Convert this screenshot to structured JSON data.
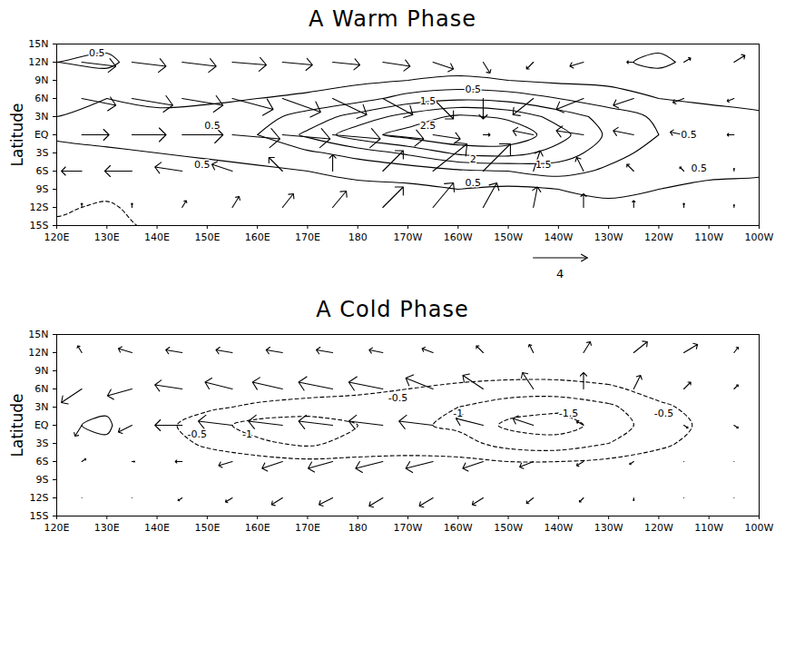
{
  "chart_data": [
    {
      "type": "vector_contour",
      "title": "A Warm Phase",
      "ylabel": "Latitude",
      "xlim": [
        120,
        260
      ],
      "ylim": [
        -15,
        15
      ],
      "xticks": [
        {
          "value": 120,
          "label": "120E"
        },
        {
          "value": 130,
          "label": "130E"
        },
        {
          "value": 140,
          "label": "140E"
        },
        {
          "value": 150,
          "label": "150E"
        },
        {
          "value": 160,
          "label": "160E"
        },
        {
          "value": 170,
          "label": "170E"
        },
        180,
        {
          "value": 190,
          "label": "170W"
        },
        {
          "value": 200,
          "label": "160W"
        },
        {
          "value": 210,
          "label": "150W"
        },
        {
          "value": 220,
          "label": "140W"
        },
        {
          "value": 230,
          "label": "130W"
        },
        {
          "value": 240,
          "label": "120W"
        },
        {
          "value": 250,
          "label": "110W"
        },
        {
          "value": 260,
          "label": "100W"
        }
      ],
      "yticks": [
        {
          "value": -15,
          "label": "15S"
        },
        {
          "value": -12,
          "label": "12S"
        },
        {
          "value": -9,
          "label": "9S"
        },
        {
          "value": -6,
          "label": "6S"
        },
        {
          "value": -3,
          "label": "3S"
        },
        {
          "value": 0,
          "label": "EQ"
        },
        {
          "value": 3,
          "label": "3N"
        },
        {
          "value": 6,
          "label": "6N"
        },
        {
          "value": 9,
          "label": "9N"
        },
        {
          "value": 12,
          "label": "12N"
        },
        {
          "value": 15,
          "label": "15N"
        }
      ],
      "field": {
        "lon": [
          120,
          130,
          140,
          150,
          160,
          170,
          180,
          190,
          200,
          210,
          220,
          230,
          240,
          250,
          260
        ],
        "lat": [
          -15,
          -12,
          -9,
          -6,
          -3,
          0,
          3,
          6,
          9,
          12,
          15
        ],
        "values": [
          [
            -0.6,
            -0.8,
            -0.3,
            0.0,
            0.0,
            0.1,
            0.2,
            0.2,
            0.3,
            0.3,
            0.3,
            0.3,
            0.3,
            0.3,
            0.3
          ],
          [
            -0.4,
            -0.6,
            -0.2,
            0.0,
            0.1,
            0.2,
            0.2,
            0.3,
            0.4,
            0.4,
            0.4,
            0.4,
            0.4,
            0.4,
            0.4
          ],
          [
            -0.1,
            -0.3,
            0.0,
            0.1,
            0.2,
            0.3,
            0.4,
            0.4,
            0.5,
            0.4,
            0.5,
            0.6,
            0.5,
            0.4,
            0.3
          ],
          [
            0.0,
            -0.2,
            0.2,
            0.3,
            0.4,
            0.5,
            0.6,
            0.7,
            0.9,
            1.0,
            1.2,
            0.9,
            0.7,
            0.6,
            0.6
          ],
          [
            0.3,
            0.4,
            0.5,
            0.6,
            0.7,
            0.9,
            1.2,
            1.6,
            2.1,
            2.2,
            1.8,
            1.2,
            0.8,
            0.7,
            0.6
          ],
          [
            0.6,
            0.7,
            0.7,
            0.8,
            1.0,
            1.6,
            2.3,
            2.7,
            3.0,
            2.9,
            2.2,
            1.4,
            1.0,
            0.8,
            0.6
          ],
          [
            0.5,
            0.6,
            0.6,
            0.7,
            0.8,
            1.2,
            1.7,
            2.2,
            2.6,
            2.4,
            1.8,
            1.3,
            0.9,
            0.7,
            0.6
          ],
          [
            0.4,
            0.5,
            0.4,
            0.4,
            0.5,
            0.6,
            0.8,
            1.2,
            1.4,
            1.3,
            1.0,
            0.7,
            0.5,
            0.4,
            0.3
          ],
          [
            0.3,
            0.3,
            0.2,
            0.2,
            0.3,
            0.3,
            0.4,
            0.5,
            0.6,
            0.5,
            0.4,
            0.4,
            0.3,
            0.3,
            0.3
          ],
          [
            0.5,
            0.6,
            0.2,
            0.1,
            0.1,
            0.2,
            0.2,
            0.2,
            0.2,
            0.2,
            0.2,
            0.4,
            0.6,
            0.3,
            0.2
          ],
          [
            0.3,
            0.4,
            0.1,
            0.0,
            0.0,
            0.1,
            0.1,
            0.1,
            0.1,
            0.1,
            0.1,
            0.3,
            0.4,
            0.2,
            0.1
          ]
        ]
      },
      "contour_levels": [
        -1,
        -0.5,
        0.5,
        1,
        1.5,
        2,
        2.5
      ],
      "contour_labels": [
        {
          "text": "0.5",
          "lon": 128,
          "lat": 13.5
        },
        {
          "text": "1.5",
          "lon": 194,
          "lat": 5.5
        },
        {
          "text": "0.5",
          "lon": 203,
          "lat": 7.5
        },
        {
          "text": "0.5",
          "lon": 151,
          "lat": 1.5
        },
        {
          "text": "2.5",
          "lon": 194,
          "lat": 1.5
        },
        {
          "text": "2",
          "lon": 203,
          "lat": -4
        },
        {
          "text": "1.5",
          "lon": 217,
          "lat": -5
        },
        {
          "text": "0.5",
          "lon": 203,
          "lat": -8
        },
        {
          "text": "0.5",
          "lon": 149,
          "lat": -5
        },
        {
          "text": "0.5",
          "lon": 246,
          "lat": 0
        },
        {
          "text": "0.5",
          "lon": 248,
          "lat": -5.5
        }
      ],
      "vectors": {
        "lon": [
          125,
          135,
          145,
          155,
          165,
          175,
          185,
          195,
          205,
          215,
          225,
          235,
          245,
          255
        ],
        "lat": [
          12,
          6,
          0,
          -6,
          -12
        ],
        "u": [
          [
            2.5,
            2.5,
            2.5,
            2.5,
            2.2,
            2,
            2,
            1.5,
            0.5,
            -0.5,
            -1,
            -0.5,
            0.5,
            0.8
          ],
          [
            2.5,
            3,
            3,
            3,
            2.8,
            2.5,
            2.2,
            1.5,
            0,
            -1.5,
            -2,
            -1.5,
            -0.8,
            -0.5
          ],
          [
            2,
            2.5,
            3,
            3.5,
            3.5,
            3.5,
            3,
            2,
            0.5,
            -1.5,
            -2,
            -1.5,
            -1,
            -0.5
          ],
          [
            -1.5,
            -2,
            -2,
            -1.5,
            -1,
            0,
            1.5,
            2.5,
            2,
            0.5,
            -0.5,
            -0.5,
            -0.3,
            0
          ],
          [
            0,
            0,
            0.3,
            0.5,
            0.8,
            1,
            1.5,
            1.5,
            1,
            0.3,
            0,
            0,
            0,
            0
          ]
        ],
        "v": [
          [
            -0.3,
            -0.3,
            -0.3,
            -0.2,
            -0.2,
            -0.2,
            -0.3,
            -0.5,
            -0.8,
            -0.5,
            -0.3,
            0,
            0.3,
            0.5
          ],
          [
            -0.5,
            -0.5,
            -0.5,
            -0.8,
            -1,
            -1.2,
            -1.2,
            -1.5,
            -1.5,
            -1.2,
            -0.8,
            -0.5,
            -0.3,
            -0.2
          ],
          [
            0,
            0,
            0,
            -0.3,
            -0.3,
            -0.3,
            -0.3,
            -0.3,
            0,
            0.3,
            0.3,
            0.3,
            0.2,
            0
          ],
          [
            0,
            0,
            0.3,
            0.5,
            1,
            1.2,
            1.5,
            2,
            2,
            1.5,
            1,
            0.5,
            0.3,
            0.2
          ],
          [
            0.3,
            0.3,
            0.5,
            0.8,
            1,
            1.2,
            1.5,
            1.8,
            1.8,
            1.5,
            1,
            0.5,
            0.3,
            0.2
          ]
        ]
      },
      "reference_vector": 4
    },
    {
      "type": "vector_contour",
      "title": "A Cold Phase",
      "ylabel": "Latitude",
      "xlim": [
        120,
        260
      ],
      "ylim": [
        -15,
        15
      ],
      "xticks": [
        {
          "value": 120,
          "label": "120E"
        },
        {
          "value": 130,
          "label": "130E"
        },
        {
          "value": 140,
          "label": "140E"
        },
        {
          "value": 150,
          "label": "150E"
        },
        {
          "value": 160,
          "label": "160E"
        },
        {
          "value": 170,
          "label": "170E"
        },
        180,
        {
          "value": 190,
          "label": "170W"
        },
        {
          "value": 200,
          "label": "160W"
        },
        {
          "value": 210,
          "label": "150W"
        },
        {
          "value": 220,
          "label": "140W"
        },
        {
          "value": 230,
          "label": "130W"
        },
        {
          "value": 240,
          "label": "120W"
        },
        {
          "value": 250,
          "label": "110W"
        },
        {
          "value": 260,
          "label": "100W"
        }
      ],
      "yticks": [
        {
          "value": -15,
          "label": "15S"
        },
        {
          "value": -12,
          "label": "12S"
        },
        {
          "value": -9,
          "label": "9S"
        },
        {
          "value": -6,
          "label": "6S"
        },
        {
          "value": -3,
          "label": "3S"
        },
        {
          "value": 0,
          "label": "EQ"
        },
        {
          "value": 3,
          "label": "3N"
        },
        {
          "value": 6,
          "label": "6N"
        },
        {
          "value": 9,
          "label": "9N"
        },
        {
          "value": 12,
          "label": "12N"
        },
        {
          "value": 15,
          "label": "15N"
        }
      ],
      "field": {
        "lon": [
          120,
          130,
          140,
          150,
          160,
          170,
          180,
          190,
          200,
          210,
          220,
          230,
          240,
          250,
          260
        ],
        "lat": [
          -15,
          -12,
          -9,
          -6,
          -3,
          0,
          3,
          6,
          9,
          12,
          15
        ],
        "values": [
          [
            0.3,
            0.2,
            0.1,
            0,
            0,
            0,
            0,
            0,
            0,
            0,
            0,
            0,
            0,
            0,
            0
          ],
          [
            0.2,
            0.1,
            0,
            0,
            0,
            0,
            -0.1,
            -0.1,
            -0.1,
            -0.1,
            -0.1,
            -0.1,
            -0.1,
            0,
            0
          ],
          [
            0.1,
            0.1,
            0,
            -0.1,
            -0.2,
            -0.2,
            -0.3,
            -0.3,
            -0.3,
            -0.3,
            -0.3,
            -0.3,
            -0.2,
            -0.1,
            0
          ],
          [
            0.2,
            0.1,
            0,
            -0.2,
            -0.3,
            -0.4,
            -0.4,
            -0.4,
            -0.4,
            -0.5,
            -0.5,
            -0.4,
            -0.3,
            -0.2,
            -0.1
          ],
          [
            0.3,
            0.4,
            -0.2,
            -0.6,
            -0.9,
            -1.1,
            -0.8,
            -0.7,
            -0.8,
            -1.2,
            -1.3,
            -1.0,
            -0.6,
            -0.3,
            -0.2
          ],
          [
            0.4,
            0.6,
            -0.3,
            -0.8,
            -1.2,
            -1.3,
            -1.0,
            -0.9,
            -1.1,
            -1.6,
            -1.7,
            -1.3,
            -0.7,
            -0.4,
            -0.2
          ],
          [
            0.3,
            0.4,
            -0.1,
            -0.4,
            -0.6,
            -0.7,
            -0.7,
            -0.8,
            -1.0,
            -1.3,
            -1.4,
            -1.1,
            -0.6,
            -0.3,
            -0.1
          ],
          [
            0.3,
            0.2,
            0,
            -0.1,
            -0.2,
            -0.3,
            -0.4,
            -0.5,
            -0.6,
            -0.7,
            -0.7,
            -0.6,
            -0.3,
            -0.1,
            0
          ],
          [
            0.1,
            0.1,
            0,
            0,
            -0.1,
            -0.1,
            -0.2,
            -0.2,
            -0.3,
            -0.3,
            -0.3,
            -0.2,
            -0.1,
            0,
            0
          ],
          [
            0,
            0,
            0,
            0,
            0,
            0,
            0,
            0,
            -0.1,
            -0.1,
            -0.1,
            -0.1,
            0,
            0,
            0
          ],
          [
            0,
            0,
            0,
            0,
            0,
            0,
            0,
            0,
            0,
            0,
            0,
            0,
            0,
            0,
            0
          ]
        ]
      },
      "contour_levels": [
        -1.5,
        -1,
        -0.5,
        0.5
      ],
      "contour_labels": [
        {
          "text": "-0.5",
          "lon": 188,
          "lat": 4.5
        },
        {
          "text": "-1",
          "lon": 200,
          "lat": 2
        },
        {
          "text": "-1.5",
          "lon": 222,
          "lat": 2
        },
        {
          "text": "-0.5",
          "lon": 241,
          "lat": 2
        },
        {
          "text": "-0.5",
          "lon": 148,
          "lat": -1.5
        },
        {
          "text": "-1",
          "lon": 158,
          "lat": -1.5
        }
      ],
      "vectors": {
        "lon": [
          125,
          135,
          145,
          155,
          165,
          175,
          185,
          195,
          205,
          215,
          225,
          235,
          245,
          255
        ],
        "lat": [
          12,
          6,
          0,
          -6,
          -12
        ],
        "u": [
          [
            -0.3,
            -1,
            -1.2,
            -1.2,
            -1.2,
            -1.2,
            -1,
            -0.8,
            -0.5,
            -0.3,
            0.5,
            1,
            1,
            0.3
          ],
          [
            -1.5,
            -1.8,
            -2,
            -2,
            -2.2,
            -2.5,
            -2.5,
            -2,
            -1.5,
            -0.8,
            0,
            0.5,
            0.5,
            0.3
          ],
          [
            -0.5,
            -1,
            -2,
            -2.5,
            -2.5,
            -2.5,
            -2.5,
            -2.5,
            -2,
            -1.5,
            -0.5,
            0,
            0.3,
            0.3
          ],
          [
            0.3,
            0.2,
            -0.5,
            -1,
            -1.5,
            -1.8,
            -2,
            -2,
            -1.5,
            -1,
            -0.5,
            -0.3,
            0,
            0
          ],
          [
            0,
            0,
            -0.3,
            -0.5,
            -0.8,
            -1,
            -1,
            -1,
            -0.8,
            -0.5,
            -0.3,
            0,
            0,
            0
          ]
        ],
        "v": [
          [
            0.5,
            0.3,
            0.2,
            0.2,
            0.2,
            0.2,
            0.2,
            0.3,
            0.5,
            0.6,
            0.8,
            0.8,
            0.6,
            0.4
          ],
          [
            -1,
            -0.5,
            0.3,
            0.5,
            0.5,
            0.5,
            0.5,
            0.8,
            1,
            1.2,
            1.2,
            1,
            0.5,
            0.3
          ],
          [
            -0.8,
            -0.5,
            0,
            0.3,
            0.3,
            0.3,
            0.3,
            0.3,
            0.5,
            0.5,
            0.3,
            0,
            -0.2,
            -0.2
          ],
          [
            0.2,
            0,
            0,
            -0.3,
            -0.5,
            -0.5,
            -0.5,
            -0.5,
            -0.5,
            -0.4,
            -0.3,
            -0.2,
            0,
            0
          ],
          [
            0,
            0,
            -0.2,
            -0.3,
            -0.5,
            -0.5,
            -0.6,
            -0.6,
            -0.5,
            -0.4,
            -0.3,
            -0.2,
            0,
            0
          ]
        ]
      }
    }
  ]
}
